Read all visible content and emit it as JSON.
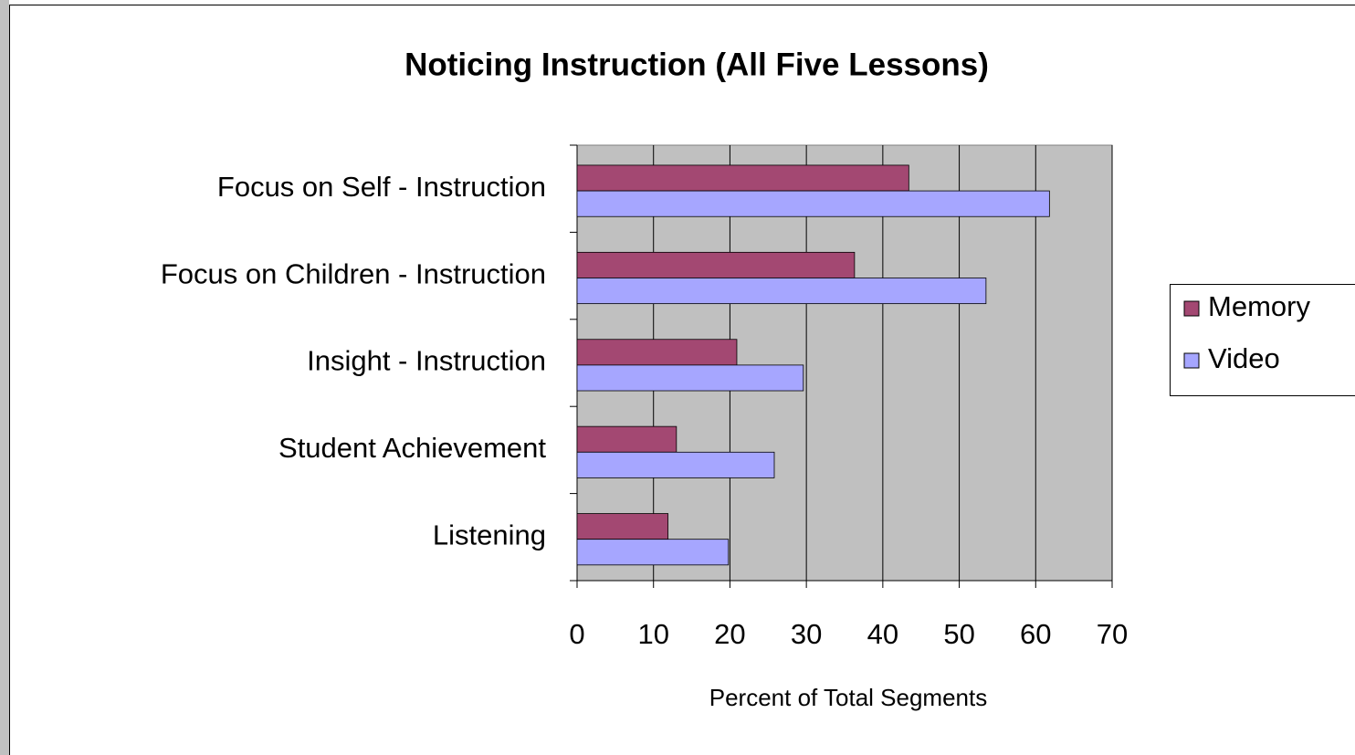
{
  "chart_data": {
    "type": "bar",
    "orientation": "horizontal",
    "title": "Noticing Instruction (All Five Lessons)",
    "x_label": "Percent of Total Segments",
    "categories": [
      "Focus on Self - Instruction",
      "Focus on Children - Instruction",
      "Insight - Instruction",
      "Student Achievement",
      "Listening"
    ],
    "series": [
      {
        "name": "Memory",
        "color": "#a34872",
        "values": [
          43.4,
          36.3,
          20.9,
          13.0,
          11.9
        ]
      },
      {
        "name": "Video",
        "color": "#a6a6ff",
        "values": [
          61.8,
          53.5,
          29.6,
          25.8,
          19.8
        ]
      }
    ],
    "xlim": [
      0,
      70
    ],
    "xticks": [
      0,
      10,
      20,
      30,
      40,
      50,
      60,
      70
    ],
    "grid": true,
    "legend": "right"
  }
}
